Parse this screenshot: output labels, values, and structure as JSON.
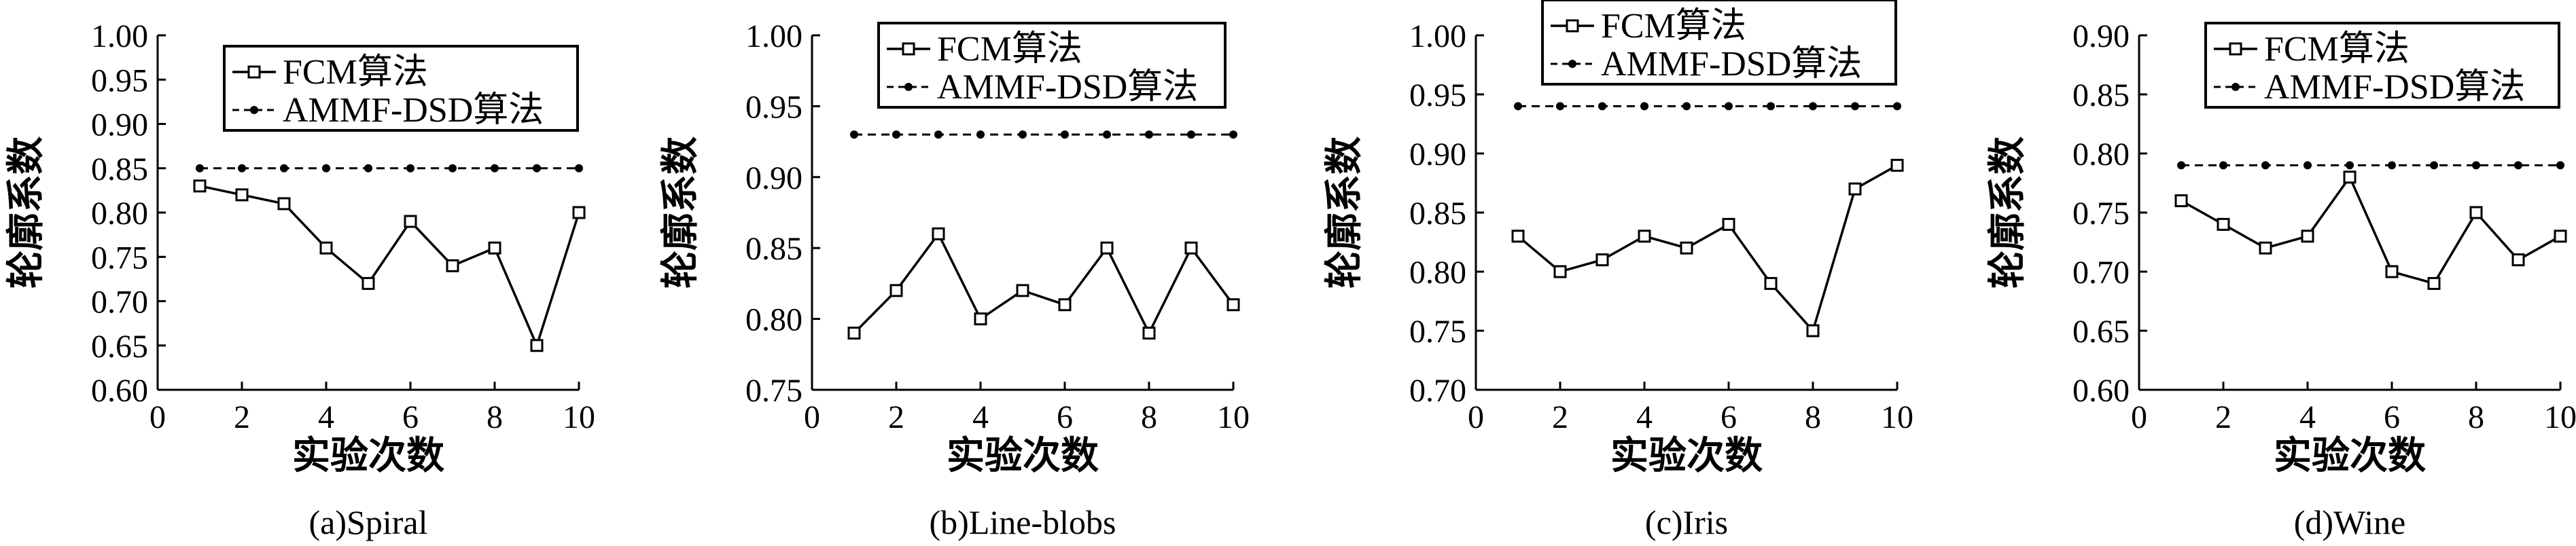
{
  "chart_data": [
    {
      "type": "line",
      "caption": "(a)Spiral",
      "xlabel": "实验次数",
      "ylabel": "轮廓系数",
      "xlim": [
        0,
        10
      ],
      "ylim": [
        0.6,
        1.0
      ],
      "x_ticks": [
        "0",
        "2",
        "4",
        "6",
        "8",
        "10"
      ],
      "y_ticks": [
        "0.60",
        "0.65",
        "0.70",
        "0.75",
        "0.80",
        "0.85",
        "0.90",
        "0.95",
        "1.00"
      ],
      "x": [
        1,
        2,
        3,
        4,
        5,
        6,
        7,
        8,
        9,
        10
      ],
      "series": [
        {
          "name": "FCM算法",
          "values": [
            0.83,
            0.82,
            0.81,
            0.76,
            0.72,
            0.79,
            0.74,
            0.76,
            0.65,
            0.8
          ]
        },
        {
          "name": "AMMF-DSD算法",
          "values": [
            0.85,
            0.85,
            0.85,
            0.85,
            0.85,
            0.85,
            0.85,
            0.85,
            0.85,
            0.85
          ]
        }
      ],
      "grid": false,
      "legend_position": "top-right"
    },
    {
      "type": "line",
      "caption": "(b)Line-blobs",
      "xlabel": "实验次数",
      "ylabel": "轮廓系数",
      "xlim": [
        0,
        10
      ],
      "ylim": [
        0.75,
        1.0
      ],
      "x_ticks": [
        "0",
        "2",
        "4",
        "6",
        "8",
        "10"
      ],
      "y_ticks": [
        "0.75",
        "0.80",
        "0.85",
        "0.90",
        "0.95",
        "1.00"
      ],
      "x": [
        1,
        2,
        3,
        4,
        5,
        6,
        7,
        8,
        9,
        10
      ],
      "series": [
        {
          "name": "FCM算法",
          "values": [
            0.79,
            0.82,
            0.86,
            0.8,
            0.82,
            0.81,
            0.85,
            0.79,
            0.85,
            0.81
          ]
        },
        {
          "name": "AMMF-DSD算法",
          "values": [
            0.93,
            0.93,
            0.93,
            0.93,
            0.93,
            0.93,
            0.93,
            0.93,
            0.93,
            0.93
          ]
        }
      ],
      "grid": false,
      "legend_position": "top-right"
    },
    {
      "type": "line",
      "caption": "(c)Iris",
      "xlabel": "实验次数",
      "ylabel": "轮廓系数",
      "xlim": [
        0,
        10
      ],
      "ylim": [
        0.7,
        1.0
      ],
      "x_ticks": [
        "0",
        "2",
        "4",
        "6",
        "8",
        "10"
      ],
      "y_ticks": [
        "0.70",
        "0.75",
        "0.80",
        "0.85",
        "0.90",
        "0.95",
        "1.00"
      ],
      "x": [
        1,
        2,
        3,
        4,
        5,
        6,
        7,
        8,
        9,
        10
      ],
      "series": [
        {
          "name": "FCM算法",
          "values": [
            0.83,
            0.8,
            0.81,
            0.83,
            0.82,
            0.84,
            0.79,
            0.75,
            0.87,
            0.89
          ]
        },
        {
          "name": "AMMF-DSD算法",
          "values": [
            0.94,
            0.94,
            0.94,
            0.94,
            0.94,
            0.94,
            0.94,
            0.94,
            0.94,
            0.94
          ]
        }
      ],
      "grid": false,
      "legend_position": "top-right"
    },
    {
      "type": "line",
      "caption": "(d)Wine",
      "xlabel": "实验次数",
      "ylabel": "轮廓系数",
      "xlim": [
        0,
        10
      ],
      "ylim": [
        0.6,
        0.9
      ],
      "x_ticks": [
        "0",
        "2",
        "4",
        "6",
        "8",
        "10"
      ],
      "y_ticks": [
        "0.60",
        "0.65",
        "0.70",
        "0.75",
        "0.80",
        "0.85",
        "0.90"
      ],
      "x": [
        1,
        2,
        3,
        4,
        5,
        6,
        7,
        8,
        9,
        10
      ],
      "series": [
        {
          "name": "FCM算法",
          "values": [
            0.76,
            0.74,
            0.72,
            0.73,
            0.78,
            0.7,
            0.69,
            0.75,
            0.71,
            0.73
          ]
        },
        {
          "name": "AMMF-DSD算法",
          "values": [
            0.79,
            0.79,
            0.79,
            0.79,
            0.79,
            0.79,
            0.79,
            0.79,
            0.79,
            0.79
          ]
        }
      ],
      "grid": false,
      "legend_position": "top-right"
    }
  ]
}
